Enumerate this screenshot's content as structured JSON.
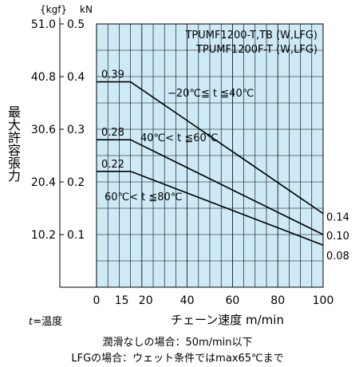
{
  "chart_data": {
    "type": "line",
    "title": "",
    "product_labels": [
      "TPUMF1200-T,TB (W,LFG)",
      "TPUMF1200F-T (W,LFG)"
    ],
    "xlabel": "チェーン速度 m/min",
    "ylabel": "最大許容張力",
    "y_unit_kgf": "{kgf}",
    "y_unit_kn": "kN",
    "xlim": [
      0,
      100
    ],
    "ylim": [
      0,
      0.5
    ],
    "x_ticks": [
      "0",
      "15",
      "20",
      "40",
      "60",
      "80",
      "100"
    ],
    "y_ticks_kn": [
      "0.1",
      "0.2",
      "0.3",
      "0.4",
      "0.5"
    ],
    "y_ticks_kgf": [
      "10.2",
      "20.4",
      "30.6",
      "40.8",
      "51.0"
    ],
    "grid": true,
    "series": [
      {
        "name": "−20℃≦ t ≦40℃",
        "x": [
          0,
          15,
          100
        ],
        "y": [
          0.39,
          0.39,
          0.14
        ],
        "start_label": "0.39",
        "end_label": "0.14"
      },
      {
        "name": "40℃< t ≦60℃",
        "x": [
          0,
          15,
          100
        ],
        "y": [
          0.28,
          0.28,
          0.1
        ],
        "start_label": "0.28",
        "end_label": "0.10"
      },
      {
        "name": "60℃< t ≦80℃",
        "x": [
          0,
          15,
          100
        ],
        "y": [
          0.22,
          0.22,
          0.08
        ],
        "start_label": "0.22",
        "end_label": "0.08"
      }
    ],
    "legend_t": {
      "var": "t",
      "text": "=温度"
    }
  },
  "notes": [
    "潤滑なしの場合：50m/min以下",
    "LFGの場合：ウェット条件ではmax65℃まで"
  ],
  "colors": {
    "plot_bg": "#cdeaf6",
    "line": "#000000"
  }
}
